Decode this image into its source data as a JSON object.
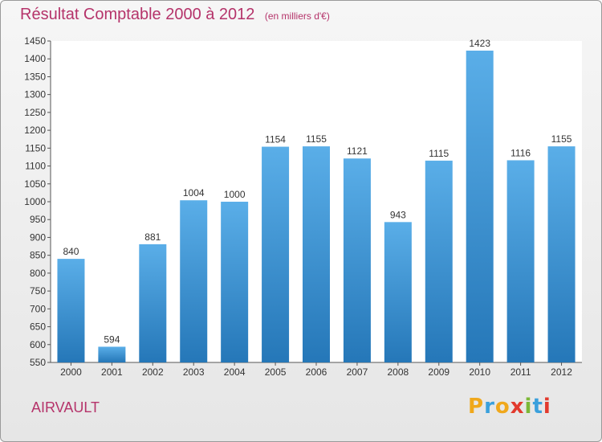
{
  "header": {
    "title": "Résultat Comptable 2000 à 2012",
    "subtitle": "(en milliers d'€)"
  },
  "footer": {
    "commune": "AIRVAULT",
    "logo_text": "Proxiti"
  },
  "colors": {
    "title": "#b5336a",
    "bar_top": "#5aaee8",
    "bar_bottom": "#2577b8",
    "plot_bg": "#ffffff"
  },
  "chart_data": {
    "type": "bar",
    "title": "Résultat Comptable 2000 à 2012",
    "subtitle": "(en milliers d'€)",
    "xlabel": "",
    "ylabel": "",
    "categories": [
      "2000",
      "2001",
      "2002",
      "2003",
      "2004",
      "2005",
      "2006",
      "2007",
      "2008",
      "2009",
      "2010",
      "2011",
      "2012"
    ],
    "values": [
      840,
      594,
      881,
      1004,
      1000,
      1154,
      1155,
      1121,
      943,
      1115,
      1423,
      1116,
      1155
    ],
    "ylim": [
      550,
      1450
    ],
    "yticks": [
      550,
      600,
      650,
      700,
      750,
      800,
      850,
      900,
      950,
      1000,
      1050,
      1100,
      1150,
      1200,
      1250,
      1300,
      1350,
      1400,
      1450
    ],
    "grid": false,
    "legend": "none"
  }
}
